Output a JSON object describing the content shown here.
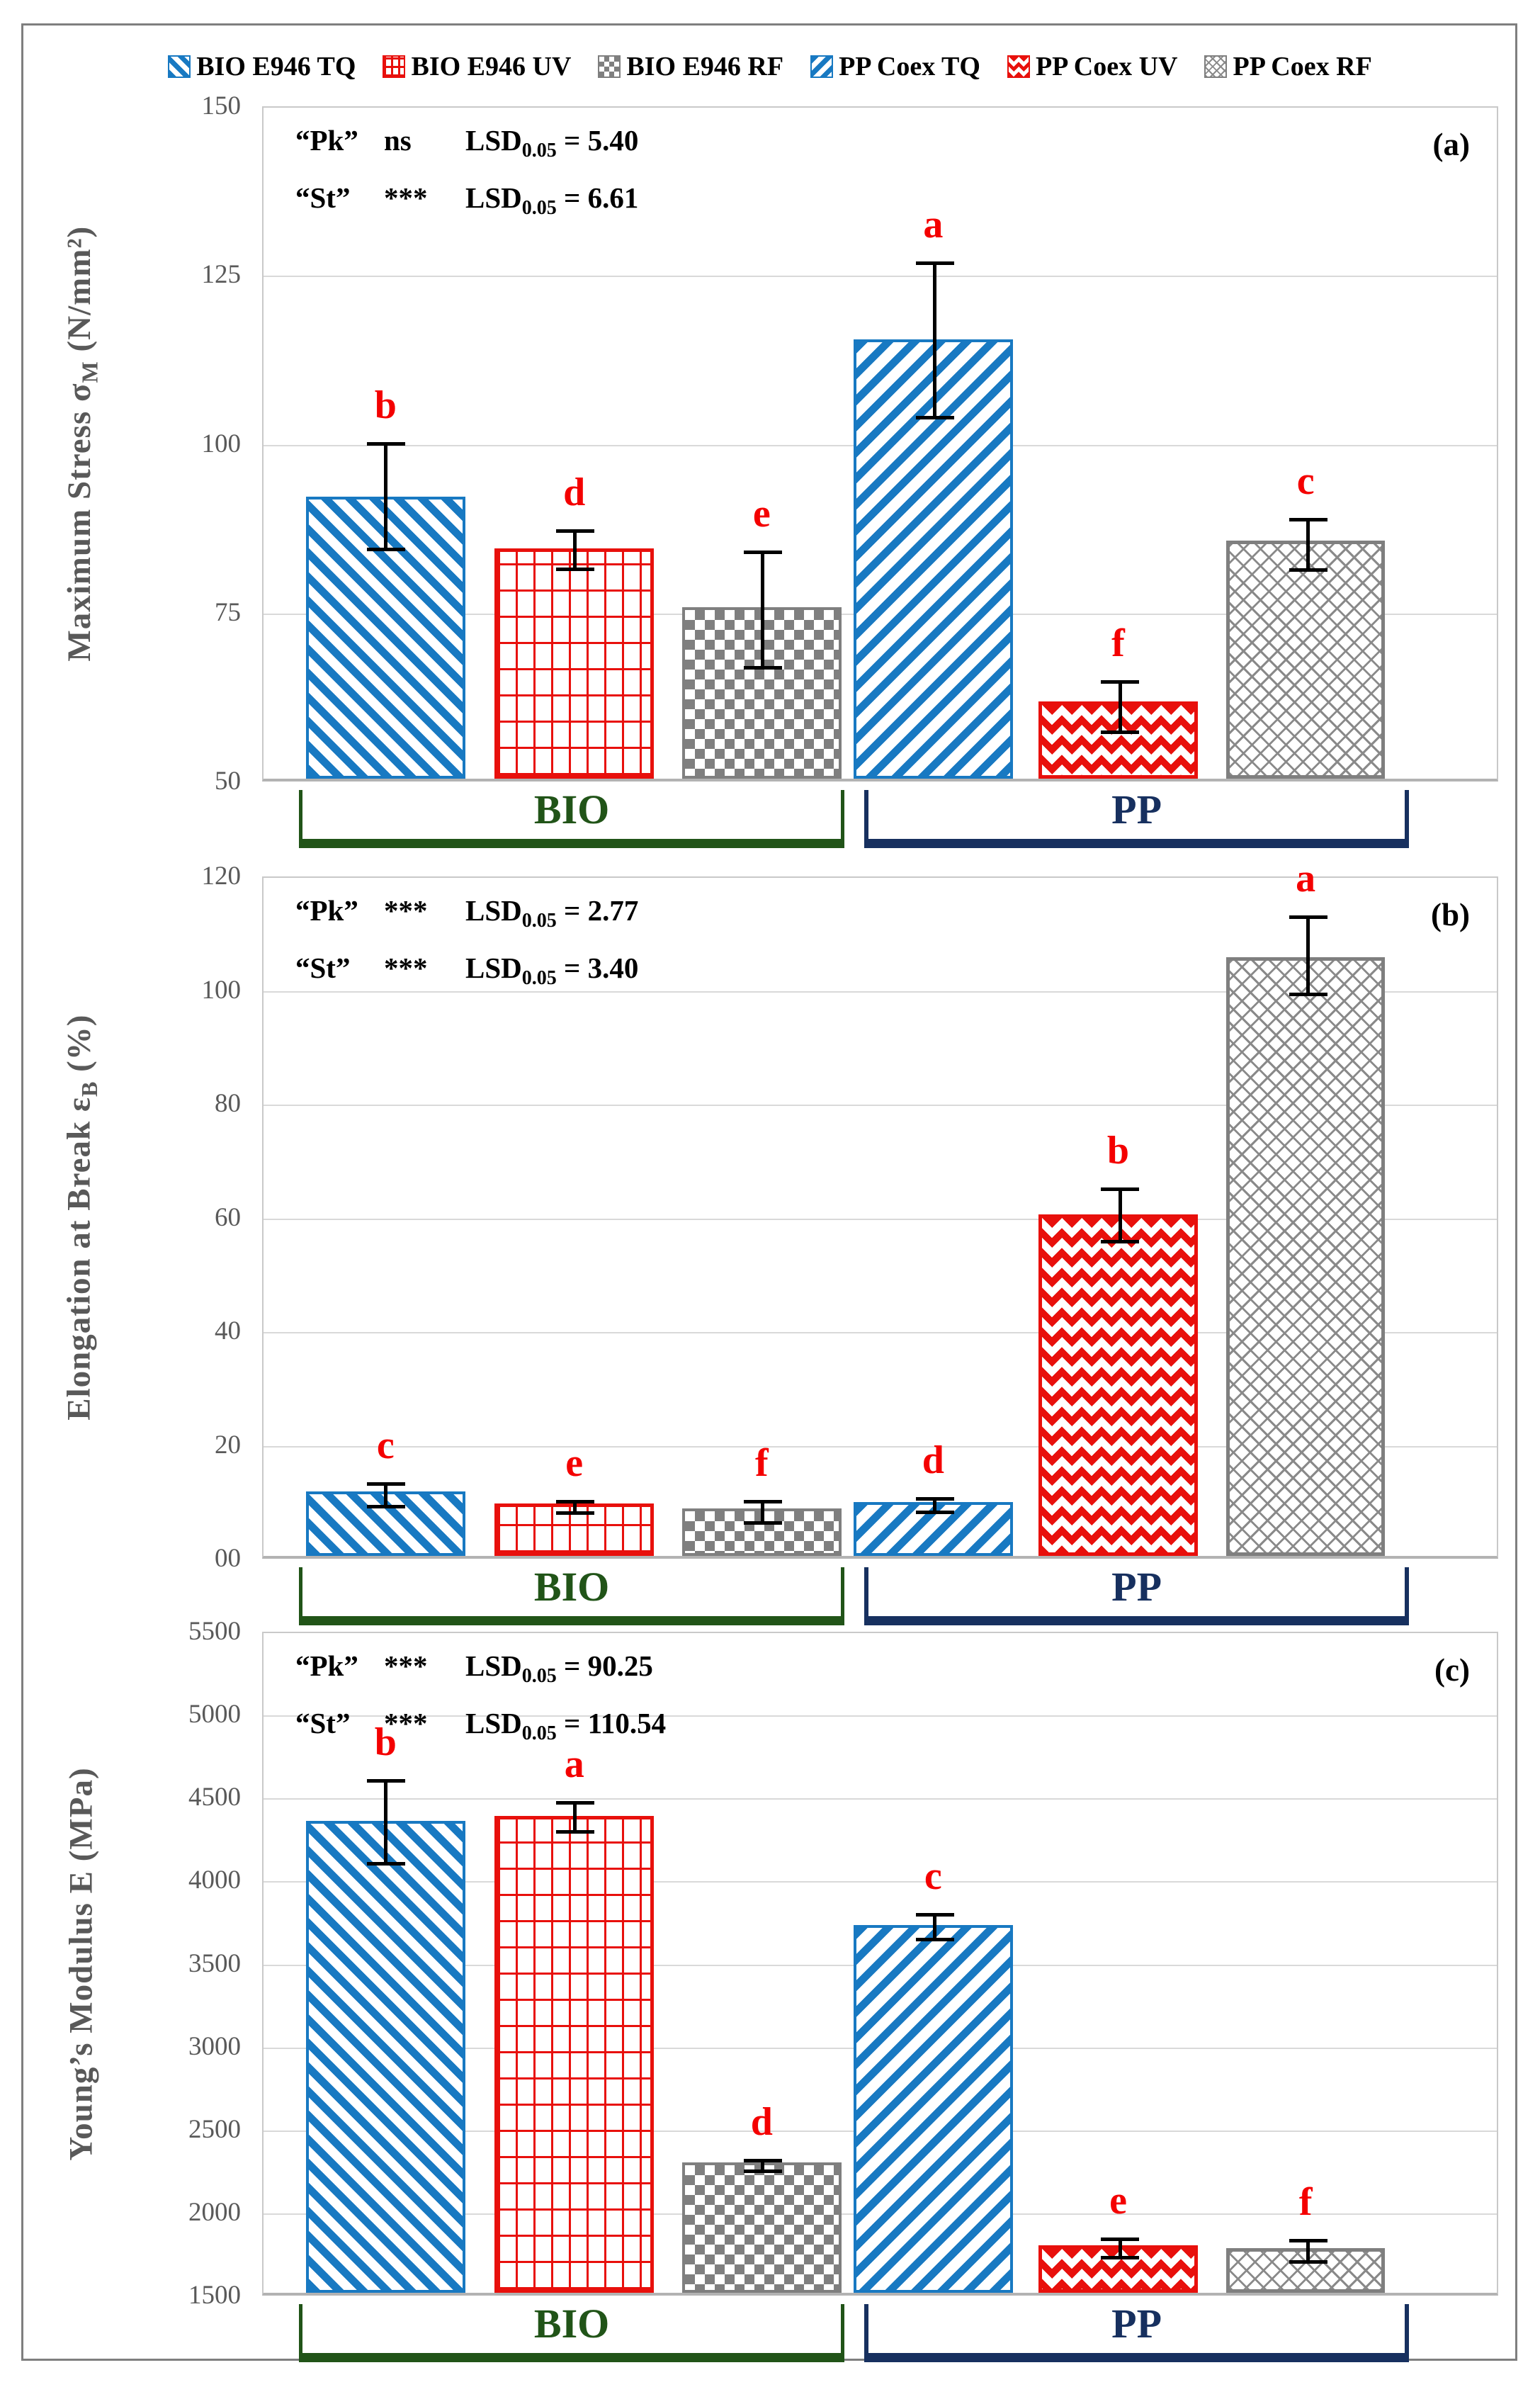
{
  "figure": {
    "colors": {
      "blue": "#1879c2",
      "red": "#e8100c",
      "gray": "#7f7f7f",
      "green_bio": "#215418",
      "navy_pp": "#17305f",
      "sig_letter_red": "#f40000",
      "axis_text_gray": "#595959",
      "gridline": "#d9d9d9",
      "frame_border": "#7f7f7f"
    }
  },
  "legend": {
    "items": [
      {
        "label": "BIO E946 TQ",
        "pattern": "bio-tq",
        "swatch": "blue-backslash-hatch"
      },
      {
        "label": "BIO E946 UV",
        "pattern": "bio-uv",
        "swatch": "red-grid-hatch"
      },
      {
        "label": "BIO E946 RF",
        "pattern": "bio-rf",
        "swatch": "gray-checker-hatch"
      },
      {
        "label": "PP Coex TQ",
        "pattern": "pp-tq",
        "swatch": "blue-slash-hatch"
      },
      {
        "label": "PP Coex UV",
        "pattern": "pp-uv",
        "swatch": "red-diamond-hatch"
      },
      {
        "label": "PP Coex RF",
        "pattern": "pp-rf",
        "swatch": "gray-crosshatch"
      }
    ]
  },
  "group_brackets": [
    {
      "label": "BIO",
      "color": "green",
      "x1_pct": 3.0,
      "x2_pct": 47.1
    },
    {
      "label": "PP",
      "color": "navy",
      "x1_pct": 48.7,
      "x2_pct": 92.8
    }
  ],
  "chart_data": [
    {
      "type": "bar",
      "panel_label": "(a)",
      "ylabel": {
        "pre": "Maximum Stress σ",
        "sub": "M",
        "post": " (N/mm²)"
      },
      "ymin": 50,
      "ymax": 150,
      "yticks": [
        {
          "label": "50",
          "v": 50
        },
        {
          "label": "75",
          "v": 75
        },
        {
          "label": "100",
          "v": 100
        },
        {
          "label": "125",
          "v": 125
        },
        {
          "label": "150",
          "v": 150
        }
      ],
      "grid": true,
      "legend_position": "top",
      "annotations": [
        {
          "name": "“Pk”",
          "sig": "ns",
          "lsd": "LSD",
          "lsd_sub": "0.05",
          "value": "= 5.40"
        },
        {
          "name": "“St”",
          "sig": "***",
          "lsd": "LSD",
          "lsd_sub": "0.05",
          "value": "= 6.61"
        }
      ],
      "bars": [
        {
          "series": "BIO E946 TQ",
          "pattern": "bio-tq",
          "group": "BIO",
          "value": 92,
          "err_low": 84.5,
          "err_high": 100.3,
          "letter": "b"
        },
        {
          "series": "BIO E946 UV",
          "pattern": "bio-uv",
          "group": "BIO",
          "value": 84.3,
          "err_low": 81.6,
          "err_high": 87.4,
          "letter": "d"
        },
        {
          "series": "BIO E946 RF",
          "pattern": "bio-rf",
          "group": "BIO",
          "value": 75.6,
          "err_low": 67.0,
          "err_high": 84.2,
          "letter": "e"
        },
        {
          "series": "PP Coex TQ",
          "pattern": "pp-tq",
          "group": "PP",
          "value": 115.5,
          "err_low": 104.0,
          "err_high": 127.0,
          "letter": "a"
        },
        {
          "series": "PP Coex UV",
          "pattern": "pp-uv",
          "group": "PP",
          "value": 61.5,
          "err_low": 57.5,
          "err_high": 65.0,
          "letter": "f"
        },
        {
          "series": "PP Coex RF",
          "pattern": "pp-rf",
          "group": "PP",
          "value": 85.5,
          "err_low": 81.5,
          "err_high": 89.0,
          "letter": "c"
        }
      ]
    },
    {
      "type": "bar",
      "panel_label": "(b)",
      "ylabel": {
        "pre": "Elongation at Break ε",
        "sub": "B",
        "post": " (%)"
      },
      "ymin": 0,
      "ymax": 120,
      "yticks": [
        {
          "label": "00",
          "v": 0
        },
        {
          "label": "20",
          "v": 20
        },
        {
          "label": "40",
          "v": 40
        },
        {
          "label": "60",
          "v": 60
        },
        {
          "label": "80",
          "v": 80
        },
        {
          "label": "100",
          "v": 100
        },
        {
          "label": "120",
          "v": 120
        }
      ],
      "grid": true,
      "legend_position": "top",
      "annotations": [
        {
          "name": "“Pk”",
          "sig": "***",
          "lsd": "LSD",
          "lsd_sub": "0.05",
          "value": "= 2.77"
        },
        {
          "name": "“St”",
          "sig": "***",
          "lsd": "LSD",
          "lsd_sub": "0.05",
          "value": "= 3.40"
        }
      ],
      "bars": [
        {
          "series": "BIO E946 TQ",
          "pattern": "bio-tq",
          "group": "BIO",
          "value": 11.4,
          "err_low": 9.3,
          "err_high": 13.4,
          "letter": "c"
        },
        {
          "series": "BIO E946 UV",
          "pattern": "bio-uv",
          "group": "BIO",
          "value": 9.3,
          "err_low": 8.2,
          "err_high": 10.4,
          "letter": "e"
        },
        {
          "series": "BIO E946 RF",
          "pattern": "bio-rf",
          "group": "BIO",
          "value": 8.4,
          "err_low": 6.5,
          "err_high": 10.3,
          "letter": "f"
        },
        {
          "series": "PP Coex TQ",
          "pattern": "pp-tq",
          "group": "PP",
          "value": 9.5,
          "err_low": 8.3,
          "err_high": 10.8,
          "letter": "d"
        },
        {
          "series": "PP Coex UV",
          "pattern": "pp-uv",
          "group": "PP",
          "value": 60.5,
          "err_low": 56.0,
          "err_high": 65.3,
          "letter": "b"
        },
        {
          "series": "PP Coex RF",
          "pattern": "pp-rf",
          "group": "PP",
          "value": 106.0,
          "err_low": 99.5,
          "err_high": 113.2,
          "letter": "a"
        }
      ]
    },
    {
      "type": "bar",
      "panel_label": "(c)",
      "ylabel": {
        "pre": "Young’s Modulus E (MPa)",
        "sub": "",
        "post": ""
      },
      "ymin": 1500,
      "ymax": 5500,
      "yticks": [
        {
          "label": "1500",
          "v": 1500
        },
        {
          "label": "2000",
          "v": 2000
        },
        {
          "label": "2500",
          "v": 2500
        },
        {
          "label": "3000",
          "v": 3000
        },
        {
          "label": "3500",
          "v": 3500
        },
        {
          "label": "4000",
          "v": 4000
        },
        {
          "label": "4500",
          "v": 4500
        },
        {
          "label": "5000",
          "v": 5000
        },
        {
          "label": "5500",
          "v": 5500
        }
      ],
      "grid": true,
      "legend_position": "top",
      "annotations": [
        {
          "name": "“Pk”",
          "sig": "***",
          "lsd": "LSD",
          "lsd_sub": "0.05",
          "value": "= 90.25"
        },
        {
          "name": "“St”",
          "sig": "***",
          "lsd": "LSD",
          "lsd_sub": "0.05",
          "value": "= 110.54"
        }
      ],
      "bars": [
        {
          "series": "BIO E946 TQ",
          "pattern": "bio-tq",
          "group": "BIO",
          "value": 4360,
          "err_low": 4110,
          "err_high": 4610,
          "letter": "b"
        },
        {
          "series": "BIO E946 UV",
          "pattern": "bio-uv",
          "group": "BIO",
          "value": 4390,
          "err_low": 4300,
          "err_high": 4480,
          "letter": "a"
        },
        {
          "series": "BIO E946 RF",
          "pattern": "bio-rf",
          "group": "BIO",
          "value": 2290,
          "err_low": 2255,
          "err_high": 2325,
          "letter": "d"
        },
        {
          "series": "PP Coex TQ",
          "pattern": "pp-tq",
          "group": "PP",
          "value": 3730,
          "err_low": 3650,
          "err_high": 3805,
          "letter": "c"
        },
        {
          "series": "PP Coex UV",
          "pattern": "pp-uv",
          "group": "PP",
          "value": 1790,
          "err_low": 1735,
          "err_high": 1850,
          "letter": "e"
        },
        {
          "series": "PP Coex RF",
          "pattern": "pp-rf",
          "group": "PP",
          "value": 1770,
          "err_low": 1710,
          "err_high": 1840,
          "letter": "f"
        }
      ]
    }
  ]
}
